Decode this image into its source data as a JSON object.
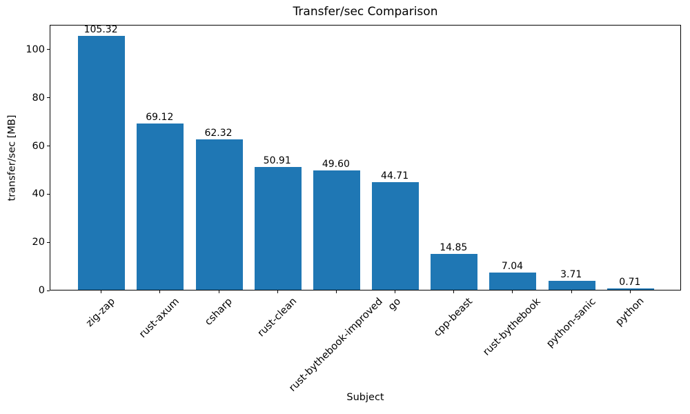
{
  "chart_data": {
    "type": "bar",
    "title": "Transfer/sec Comparison",
    "xlabel": "Subject",
    "ylabel": "transfer/sec [MB]",
    "categories": [
      "zig-zap",
      "rust-axum",
      "csharp",
      "rust-clean",
      "rust-bythebook-improved",
      "go",
      "cpp-beast",
      "rust-bythebook",
      "python-sanic",
      "python"
    ],
    "values": [
      105.32,
      69.12,
      62.32,
      50.91,
      49.6,
      44.71,
      14.85,
      7.04,
      3.71,
      0.71
    ],
    "value_labels": [
      "105.32",
      "69.12",
      "62.32",
      "50.91",
      "49.60",
      "44.71",
      "14.85",
      "7.04",
      "3.71",
      "0.71"
    ],
    "yticks": [
      0,
      20,
      40,
      60,
      80,
      100
    ],
    "ylim": [
      0,
      110.3
    ],
    "bar_color": "#1f77b4",
    "axis_color": "#000000",
    "text_color": "#000000",
    "background_color": "#ffffff",
    "grid": false,
    "legend_position": "none",
    "xtick_rotation_deg": 45
  }
}
